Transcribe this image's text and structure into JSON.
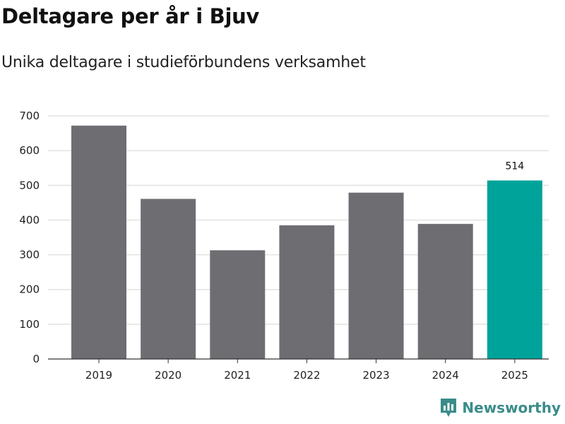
{
  "header": {
    "title": "Deltagare per år i Bjuv",
    "subtitle": "Unika deltagare i studieförbundens verksamhet"
  },
  "brand": {
    "name": "Newsworthy",
    "color": "#3a8c8a"
  },
  "chart_data": {
    "type": "bar",
    "title": "Deltagare per år i Bjuv",
    "subtitle": "Unika deltagare i studieförbundens verksamhet",
    "xlabel": "",
    "ylabel": "",
    "categories": [
      "2019",
      "2020",
      "2021",
      "2022",
      "2023",
      "2024",
      "2025"
    ],
    "values": [
      672,
      461,
      313,
      385,
      479,
      389,
      514
    ],
    "ylim": [
      0,
      700
    ],
    "yticks": [
      0,
      100,
      200,
      300,
      400,
      500,
      600,
      700
    ],
    "grid": true,
    "bar_color": "#6e6d72",
    "highlight_color": "#00a39a",
    "highlight_index": 6,
    "data_labels": [
      {
        "index": 6,
        "text": "514"
      }
    ]
  }
}
